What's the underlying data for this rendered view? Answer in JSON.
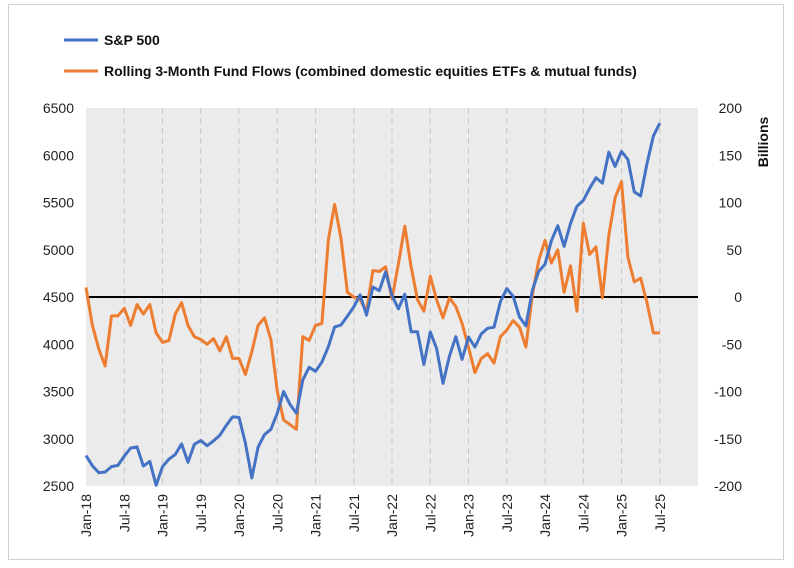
{
  "chart_data": {
    "type": "line",
    "title": "",
    "xlabel": "",
    "ylabel_left": "",
    "ylabel_right": "Billions",
    "ylim_left": [
      2500,
      6500
    ],
    "ylim_right": [
      -200,
      200
    ],
    "yticks_left": [
      "2500",
      "3000",
      "3500",
      "4000",
      "4500",
      "5000",
      "5500",
      "6000",
      "6500"
    ],
    "yticks_right": [
      "-200",
      "-150",
      "-100",
      "-50",
      "0",
      "50",
      "100",
      "150",
      "200"
    ],
    "x_start": "2018-01",
    "x_ticks": [
      "Jan-18",
      "Jul-18",
      "Jan-19",
      "Jul-19",
      "Jan-20",
      "Jul-20",
      "Jan-21",
      "Jul-21",
      "Jan-22",
      "Jul-22",
      "Jan-23",
      "Jul-23",
      "Jan-24",
      "Jul-24",
      "Jan-25",
      "Jul-25"
    ],
    "grid": "vertical dashed",
    "legend_position": "top-left",
    "colors": {
      "sp500": "#4472C4",
      "flows": "#ED7D31",
      "zero_line": "#000000",
      "plot_bg": "#EBEBEB"
    },
    "series": [
      {
        "name": "S&P 500",
        "axis": "left",
        "values": [
          2823,
          2714,
          2641,
          2648,
          2705,
          2718,
          2816,
          2901,
          2914,
          2711,
          2760,
          2507,
          2704,
          2784,
          2834,
          2946,
          2752,
          2942,
          2980,
          2926,
          2977,
          3038,
          3141,
          3231,
          3226,
          2954,
          2585,
          2912,
          3044,
          3100,
          3271,
          3500,
          3363,
          3270,
          3622,
          3756,
          3714,
          3811,
          3973,
          4181,
          4204,
          4298,
          4395,
          4523,
          4308,
          4605,
          4567,
          4766,
          4516,
          4374,
          4530,
          4132,
          4132,
          3785,
          4130,
          3955,
          3586,
          3872,
          4080,
          3840,
          4077,
          3970,
          4109,
          4169,
          4180,
          4450,
          4589,
          4508,
          4288,
          4194,
          4568,
          4770,
          4846,
          5096,
          5254,
          5036,
          5278,
          5460,
          5522,
          5648,
          5762,
          5705,
          6032,
          5882,
          6041,
          5955,
          5612,
          5569,
          5912,
          6205,
          6339
        ]
      },
      {
        "name": "Rolling 3-Month Fund Flows (combined domestic equities ETFs & mutual funds)",
        "axis": "right",
        "values": [
          10,
          -30,
          -55,
          -73,
          -20,
          -20,
          -12,
          -30,
          -8,
          -18,
          -8,
          -38,
          -48,
          -46,
          -18,
          -6,
          -30,
          -42,
          -45,
          -50,
          -44,
          -57,
          -42,
          -65,
          -65,
          -82,
          -58,
          -30,
          -22,
          -45,
          -100,
          -130,
          -135,
          -140,
          -42,
          -46,
          -30,
          -28,
          60,
          98,
          62,
          5,
          0,
          -3,
          -15,
          28,
          27,
          32,
          -2,
          35,
          75,
          32,
          -3,
          -15,
          22,
          -3,
          -22,
          -1,
          -10,
          -28,
          -53,
          -80,
          -65,
          -60,
          -70,
          -42,
          -35,
          -25,
          -32,
          -53,
          2,
          38,
          60,
          36,
          50,
          5,
          33,
          -15,
          78,
          45,
          53,
          -1,
          65,
          105,
          122,
          42,
          16,
          20,
          -6,
          -38,
          -38
        ]
      }
    ]
  }
}
